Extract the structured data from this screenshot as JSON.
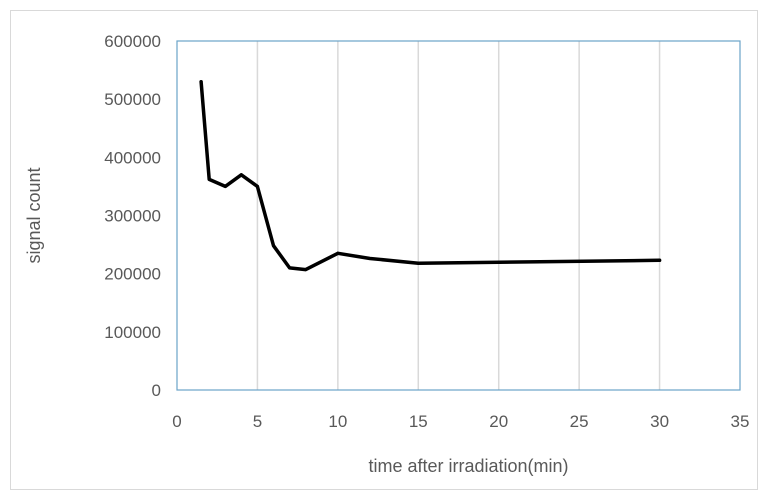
{
  "chart_data": {
    "type": "scatter",
    "title": "",
    "xlabel": "time after irradiation(min)",
    "ylabel": "signal count",
    "xlim": [
      0,
      35
    ],
    "ylim": [
      0,
      600000
    ],
    "x_ticks": [
      "0",
      "5",
      "10",
      "15",
      "20",
      "25",
      "30",
      "35"
    ],
    "y_ticks": [
      "0",
      "100000",
      "200000",
      "300000",
      "400000",
      "500000",
      "600000"
    ],
    "grid": "vertical",
    "legend": "none",
    "series": [
      {
        "x": [
          1.5,
          2,
          3,
          4,
          5,
          6,
          7,
          8,
          10,
          12,
          15,
          30
        ],
        "y": [
          530000,
          362000,
          350000,
          370000,
          350000,
          248000,
          210000,
          207000,
          235000,
          226000,
          218000,
          223000
        ],
        "color": "#000000"
      }
    ],
    "plot_border_color": "#6aa3c9",
    "grid_color": "#d9d9d9"
  }
}
